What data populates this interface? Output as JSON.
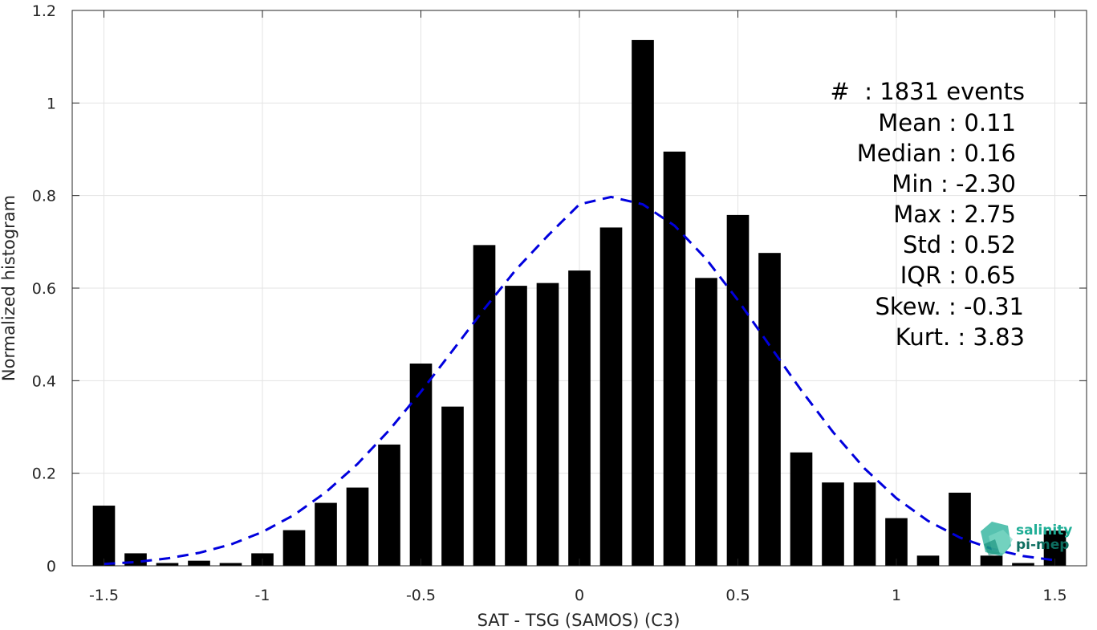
{
  "chart_data": {
    "type": "bar",
    "xlabel": "SAT - TSG (SAMOS) (C3)",
    "ylabel": "Normalized histogram",
    "xlim": [
      -1.6,
      1.6
    ],
    "ylim": [
      0,
      1.2
    ],
    "xticks": [
      -1.5,
      -1,
      -0.5,
      0,
      0.5,
      1,
      1.5
    ],
    "xtick_labels": [
      "-1.5",
      "-1",
      "-0.5",
      "0",
      "0.5",
      "1",
      "1.5"
    ],
    "yticks": [
      0,
      0.2,
      0.4,
      0.6,
      0.8,
      1,
      1.2
    ],
    "ytick_labels": [
      "0",
      "0.2",
      "0.4",
      "0.6",
      "0.8",
      "1",
      "1.2"
    ],
    "grid": true,
    "bar_color": "#000000",
    "bar_width": 0.07,
    "x": [
      -1.5,
      -1.4,
      -1.3,
      -1.2,
      -1.1,
      -1.0,
      -0.9,
      -0.8,
      -0.7,
      -0.6,
      -0.5,
      -0.4,
      -0.3,
      -0.2,
      -0.1,
      0.0,
      0.1,
      0.2,
      0.3,
      0.4,
      0.5,
      0.6,
      0.7,
      0.8,
      0.9,
      1.0,
      1.1,
      1.2,
      1.3,
      1.4,
      1.5
    ],
    "values": [
      0.13,
      0.027,
      0.006,
      0.011,
      0.006,
      0.027,
      0.077,
      0.136,
      0.169,
      0.262,
      0.437,
      0.344,
      0.693,
      0.605,
      0.611,
      0.638,
      0.731,
      1.136,
      0.895,
      0.622,
      0.758,
      0.676,
      0.245,
      0.18,
      0.18,
      0.103,
      0.022,
      0.158,
      0.022,
      0.006,
      0.076
    ],
    "fit_curve": {
      "color": "#0000dd",
      "style": "dashed",
      "x": [
        -1.5,
        -1.4,
        -1.3,
        -1.2,
        -1.1,
        -1.0,
        -0.9,
        -0.8,
        -0.7,
        -0.6,
        -0.5,
        -0.4,
        -0.3,
        -0.2,
        -0.1,
        0.0,
        0.1,
        0.2,
        0.3,
        0.4,
        0.5,
        0.6,
        0.7,
        0.8,
        0.9,
        1.0,
        1.1,
        1.2,
        1.3,
        1.4,
        1.5
      ],
      "y": [
        0.004,
        0.008,
        0.016,
        0.028,
        0.046,
        0.073,
        0.11,
        0.159,
        0.22,
        0.293,
        0.376,
        0.465,
        0.555,
        0.64,
        0.713,
        0.781,
        0.797,
        0.781,
        0.735,
        0.663,
        0.574,
        0.476,
        0.379,
        0.289,
        0.21,
        0.146,
        0.097,
        0.061,
        0.037,
        0.021,
        0.012
      ]
    }
  },
  "stats": {
    "lines": [
      "#  : 1831 events",
      "Mean : 0.11",
      "Median : 0.16",
      "Min : -2.30",
      "Max : 2.75",
      "Std : 0.52",
      "IQR : 0.65",
      "Skew. : -0.31",
      "Kurt. : 3.83"
    ]
  },
  "logo": {
    "line1": "salinity",
    "line2": "pi-mep",
    "color": "#1fae96"
  }
}
